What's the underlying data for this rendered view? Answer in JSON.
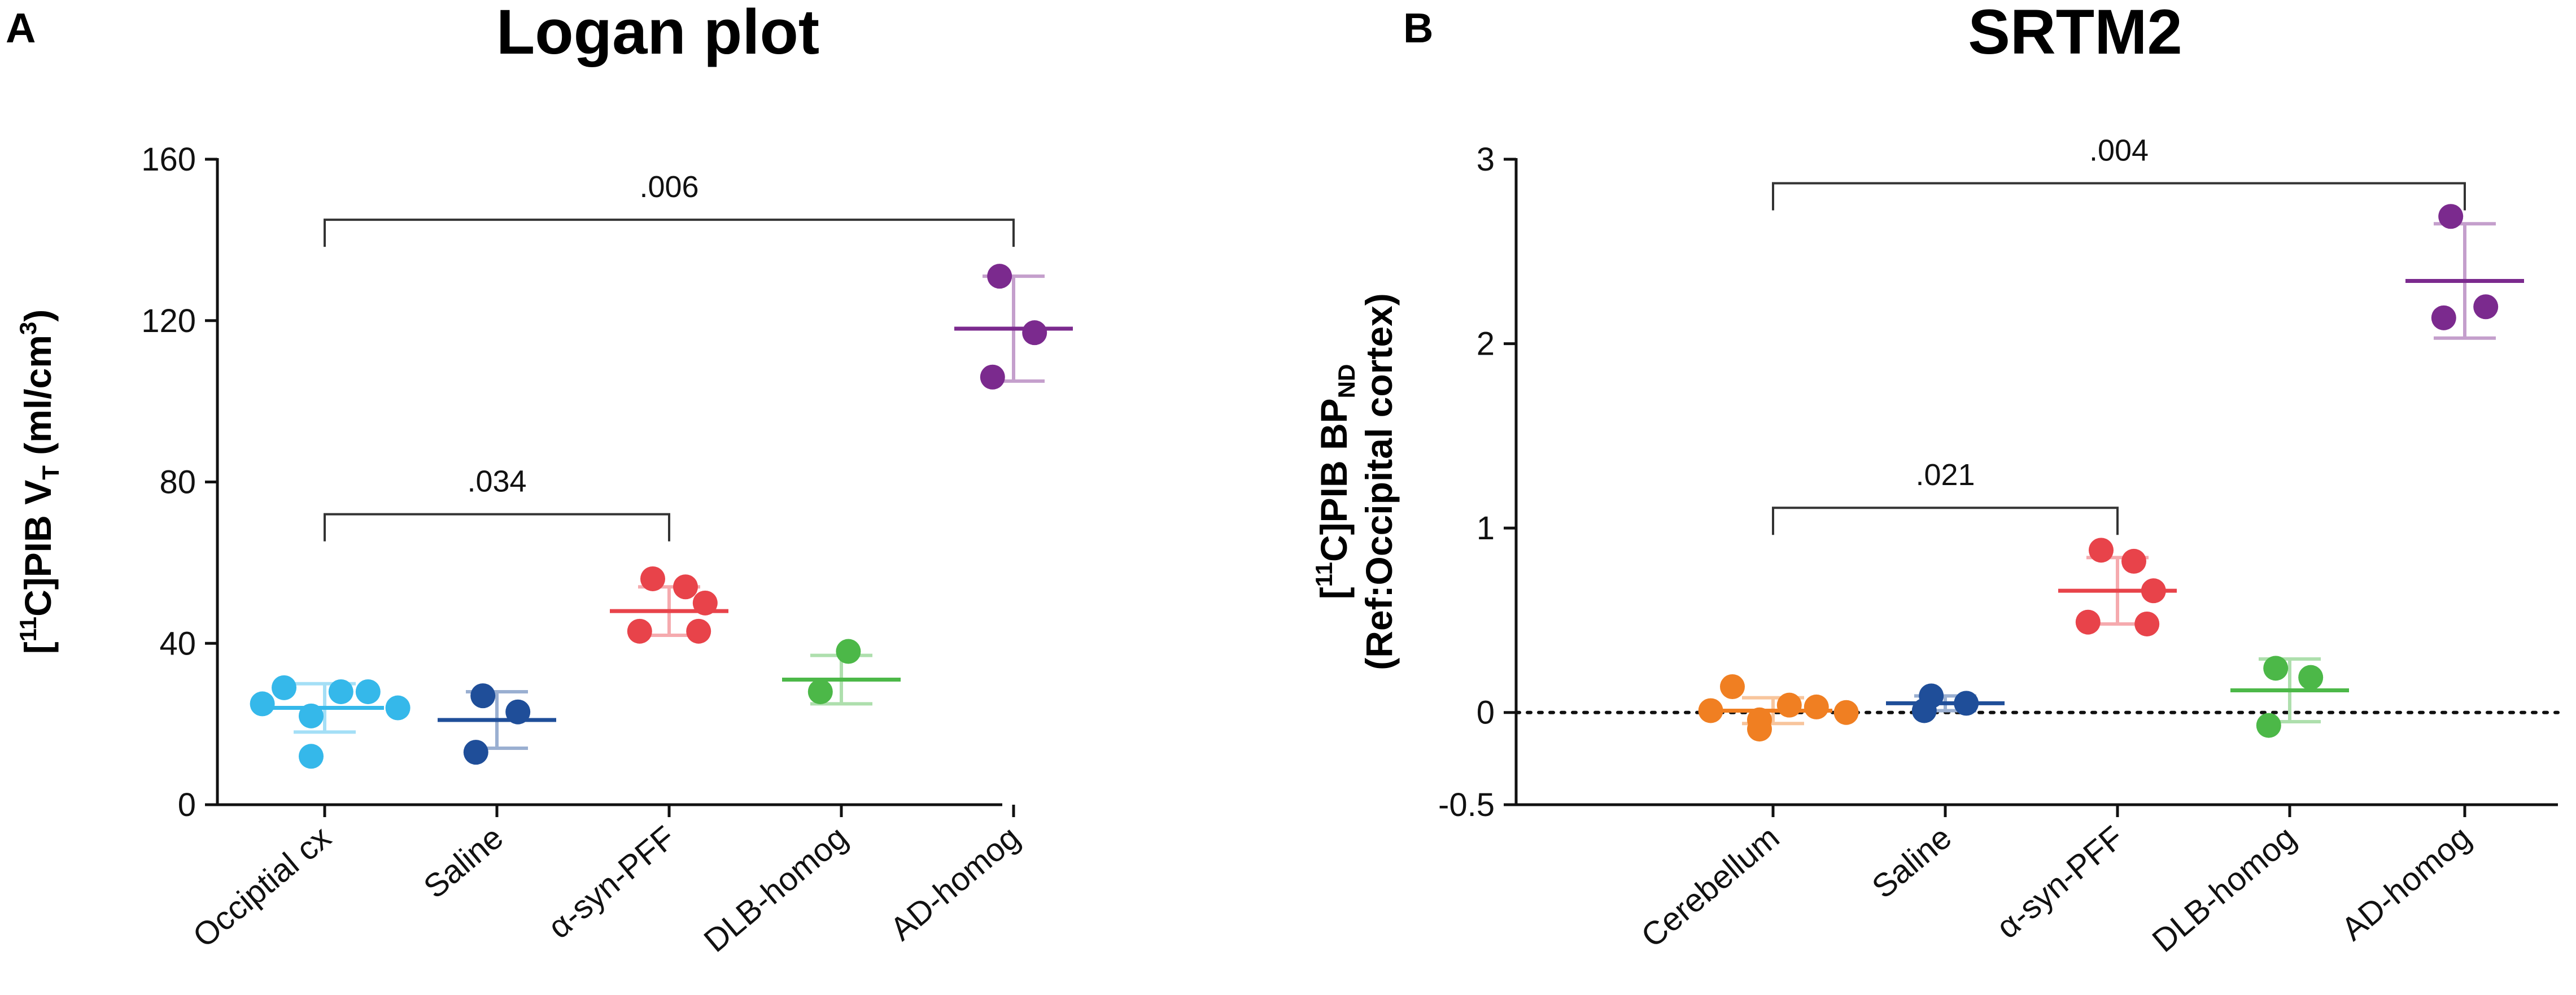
{
  "chart_data": [
    {
      "type": "scatter",
      "panel": "A",
      "title": "Logan plot",
      "ylabel_parts": {
        "open": "[",
        "sup": "11",
        "main": "C]PIB V",
        "sub": "T",
        "unit_open": " (ml/cm",
        "unit_sup": "3",
        "unit_close": ")"
      },
      "ylim": [
        0,
        160
      ],
      "yticks": [
        {
          "v": 0,
          "label": "0"
        },
        {
          "v": 40,
          "label": "40"
        },
        {
          "v": 80,
          "label": "80"
        },
        {
          "v": 120,
          "label": "120"
        },
        {
          "v": 160,
          "label": "160"
        }
      ],
      "categories": [
        "Occiptial cx",
        "Saline",
        "α-syn-PFF",
        "DLB-homog",
        "AD-homog"
      ],
      "groups": [
        {
          "name": "Occiptial cx",
          "color": "#35b8ea",
          "points": [
            29,
            28,
            28,
            25,
            24,
            22,
            12
          ],
          "mean": 24,
          "sd": 6
        },
        {
          "name": "Saline",
          "color": "#1f4e99",
          "points": [
            27,
            23,
            13
          ],
          "mean": 21,
          "sd": 7
        },
        {
          "name": "α-syn-PFF",
          "color": "#e8434a",
          "points": [
            56,
            54,
            50,
            43,
            43
          ],
          "mean": 48,
          "sd": 6
        },
        {
          "name": "DLB-homog",
          "color": "#4cb848",
          "points": [
            38,
            28
          ],
          "mean": 31,
          "sd": 6
        },
        {
          "name": "AD-homog",
          "color": "#7b2a8e",
          "points": [
            131,
            117,
            106
          ],
          "mean": 118,
          "sd": 13
        }
      ],
      "comparisons": [
        {
          "from": 0,
          "to": 4,
          "y": 145,
          "label": ".006"
        },
        {
          "from": 0,
          "to": 2,
          "y": 72,
          "label": ".034"
        }
      ]
    },
    {
      "type": "scatter",
      "panel": "B",
      "title": "SRTM2",
      "ylabel_line1_parts": {
        "open": "[",
        "sup": "11",
        "main": "C]PIB BP",
        "sub": "ND"
      },
      "ylabel_line2": "(Ref:Occipital cortex)",
      "ylim": [
        -0.5,
        3
      ],
      "yticks": [
        {
          "v": -0.5,
          "label": "-0.5"
        },
        {
          "v": 0,
          "label": "0"
        },
        {
          "v": 1,
          "label": "1"
        },
        {
          "v": 2,
          "label": "2"
        },
        {
          "v": 3,
          "label": "3"
        }
      ],
      "reference_line": 0,
      "categories": [
        "Cerebellum",
        "Saline",
        "α-syn-PFF",
        "DLB-homog",
        "AD-homog"
      ],
      "groups": [
        {
          "name": "Cerebellum",
          "color": "#f07f22",
          "points": [
            0.14,
            0.04,
            0.03,
            0.01,
            0.0,
            -0.04,
            -0.09
          ],
          "mean": 0.01,
          "sd": 0.07
        },
        {
          "name": "Saline",
          "color": "#1f4e99",
          "points": [
            0.09,
            0.05,
            0.01
          ],
          "mean": 0.05,
          "sd": 0.04
        },
        {
          "name": "α-syn-PFF",
          "color": "#e8434a",
          "points": [
            0.88,
            0.82,
            0.66,
            0.49,
            0.48
          ],
          "mean": 0.66,
          "sd": 0.18
        },
        {
          "name": "DLB-homog",
          "color": "#4cb848",
          "points": [
            0.24,
            0.19,
            -0.07
          ],
          "mean": 0.12,
          "sd": 0.17
        },
        {
          "name": "AD-homog",
          "color": "#7b2a8e",
          "points": [
            2.69,
            2.2,
            2.14
          ],
          "mean": 2.34,
          "sd": 0.31
        }
      ],
      "comparisons": [
        {
          "from": 0,
          "to": 4,
          "y": 2.87,
          "label": ".004"
        },
        {
          "from": 0,
          "to": 2,
          "y": 1.11,
          "label": ".021"
        }
      ]
    }
  ]
}
